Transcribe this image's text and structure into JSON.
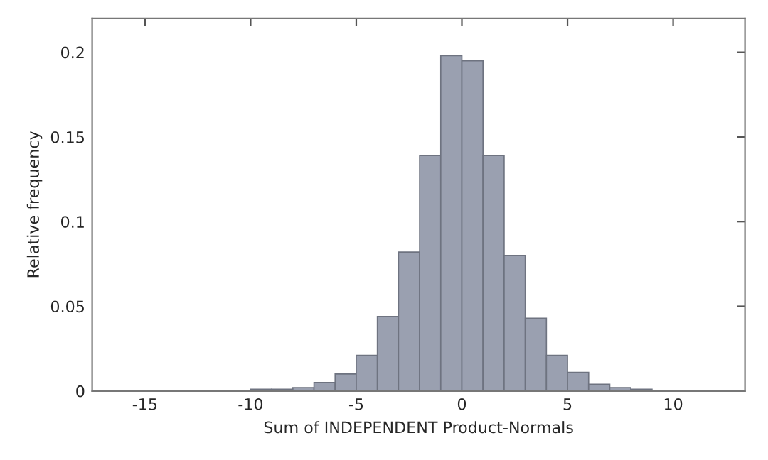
{
  "chart_data": {
    "type": "histogram",
    "xlabel": "Sum of INDEPENDENT Product-Normals",
    "ylabel": "Relative frequency",
    "bins": [
      -16,
      -15,
      -14,
      -13,
      -12,
      -11,
      -10,
      -9,
      -8,
      -7,
      -6,
      -5,
      -4,
      -3,
      -2,
      -1,
      0,
      1,
      2,
      3,
      4,
      5,
      6,
      7,
      8,
      9,
      10,
      11,
      12,
      13
    ],
    "values": [
      0,
      0,
      0,
      0,
      0,
      0,
      0.001,
      0.001,
      0.002,
      0.005,
      0.01,
      0.021,
      0.044,
      0.082,
      0.139,
      0.198,
      0.195,
      0.139,
      0.08,
      0.043,
      0.021,
      0.011,
      0.004,
      0.002,
      0.001,
      0,
      0,
      0,
      0
    ],
    "color": "#9aa0b0",
    "xlim": [
      -17.5,
      13.4
    ],
    "ylim": [
      0,
      0.22
    ],
    "xticks": [
      -15,
      -10,
      -5,
      0,
      5,
      10
    ],
    "yticks": [
      0,
      0.05,
      0.1,
      0.15,
      0.2
    ],
    "grid": false
  }
}
